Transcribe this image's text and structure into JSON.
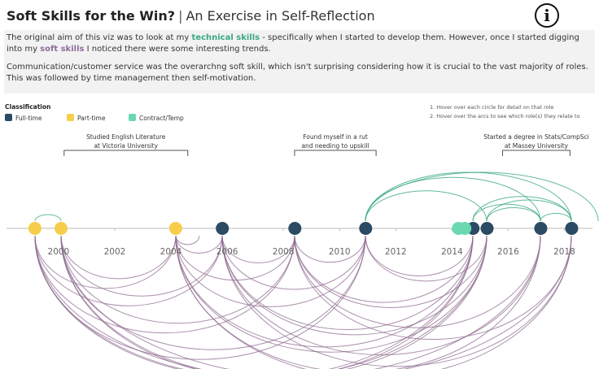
{
  "header": {
    "title": "Soft Skills for the Win?",
    "separator": "|",
    "subtitle": "An Exercise in Self-Reflection"
  },
  "intro": {
    "paragraph_1": [
      "The original aim of this viz was to look at my ",
      "technical skills",
      " - specifically when I started to develop them. However, once I started digging into my ",
      "soft skills",
      " I noticed there were some interesting trends."
    ],
    "paragraph_2": "Communication/customer service was the overarchng soft skill, which isn't surprising considering how it is crucial to the vast majority of roles. This was followed by time management then self-motivation."
  },
  "instructions": [
    "1. Hover over each circle for detail on that role",
    "2. Hover over the arcs to see which role(s) they relate to"
  ],
  "chart_data": {
    "type": "timeline",
    "legend_title": "Classification",
    "xlim": [
      1998.15,
      2019
    ],
    "xticks": [
      2000,
      2002,
      2004,
      2006,
      2008,
      2010,
      2012,
      2014,
      2016,
      2018
    ],
    "series": [
      {
        "name": "Full-time",
        "color": "#2b4a63",
        "x": [
          2005.83,
          2008.41,
          2010.93,
          2014.75,
          2015.25,
          2017.16,
          2018.26
        ]
      },
      {
        "name": "Part-time",
        "color": "#f7cd4a",
        "x": [
          1999.16,
          2000.09,
          2004.17
        ]
      },
      {
        "name": "Contract/Temp",
        "color": "#6bd8b0",
        "x": [
          2014.23,
          2014.46
        ]
      }
    ],
    "annotations": [
      {
        "lines": [
          "Studied English Literature",
          "at Victoria University"
        ],
        "start": 2000.2,
        "end": 2004.6
      },
      {
        "lines": [
          "Found myself in a rut",
          "and needing to upskill"
        ],
        "start": 2008.4,
        "end": 2011.3
      },
      {
        "lines": [
          "Started a degree in Stats/CompSci",
          "at Massey University"
        ],
        "start": 2015.8,
        "end": 2018.2
      }
    ]
  }
}
